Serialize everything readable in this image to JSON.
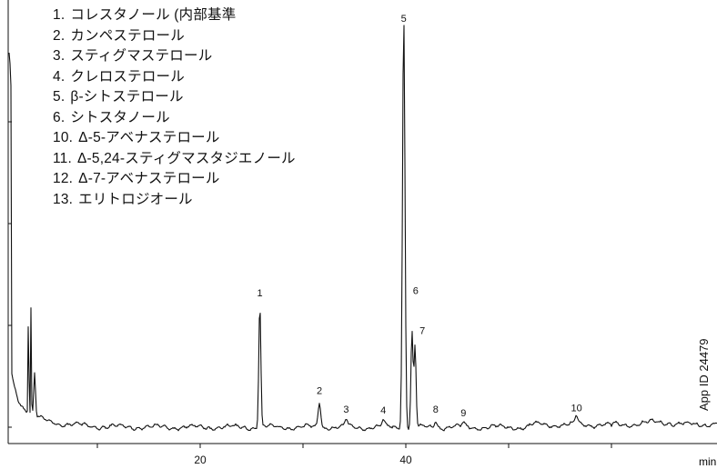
{
  "chart_data": {
    "type": "line",
    "xlabel": "min",
    "x_ticks": [
      "20",
      "40"
    ],
    "xlim": [
      0,
      70
    ],
    "legend": [
      {
        "num": "1.",
        "name": "コレスタノール (内部基準"
      },
      {
        "num": "2.",
        "name": "カンペステロール"
      },
      {
        "num": "3.",
        "name": "スティグマステロール"
      },
      {
        "num": "4.",
        "name": "クレロステロール"
      },
      {
        "num": "5.",
        "name": "β-シトステロール"
      },
      {
        "num": "6.",
        "name": "シトスタノール"
      },
      {
        "num": "10.",
        "name": "Δ-5-アベナステロール"
      },
      {
        "num": "11.",
        "name": "Δ-5,24-スティグマスタジエノール"
      },
      {
        "num": "12.",
        "name": "Δ-7-アベナステロール"
      },
      {
        "num": "13.",
        "name": "エリトロジオール"
      }
    ],
    "peaks": [
      {
        "label": "1",
        "x": 25.8,
        "height": 1.0
      },
      {
        "label": "2",
        "x": 31.6,
        "height": 0.21
      },
      {
        "label": "3",
        "x": 34.2,
        "height": 0.06
      },
      {
        "label": "4",
        "x": 37.8,
        "height": 0.05
      },
      {
        "label": "5",
        "x": 39.8,
        "height": 3.32
      },
      {
        "label": "6",
        "x": 40.6,
        "height": 0.77
      },
      {
        "label": "7",
        "x": 40.9,
        "height": 0.65
      },
      {
        "label": "8",
        "x": 42.9,
        "height": 0.06
      },
      {
        "label": "9",
        "x": 45.6,
        "height": 0.03
      },
      {
        "label": "10",
        "x": 56.6,
        "height": 0.07
      }
    ],
    "colors": {
      "trace": "#111111",
      "axis": "#111111"
    }
  },
  "app_id": "App ID 24479"
}
